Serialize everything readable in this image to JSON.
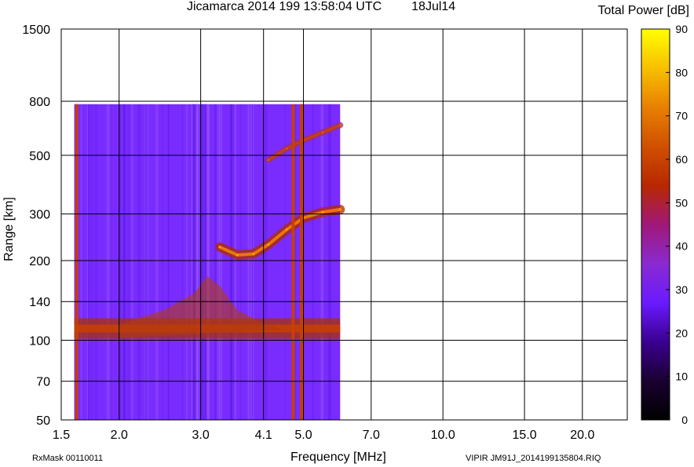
{
  "title": "Jicamarca 2014 199 13:58:04 UTC",
  "date": "18Jul14",
  "colorbar_title": "Total Power [dB]",
  "footer_left": "RxMask 00110011",
  "footer_right": "VIPIR  JM91J_2014199135804.RIQ",
  "colors": {
    "background": "#ffffff",
    "grid": "#000000",
    "background_noise": "#7a2cff",
    "trace": "#c84000",
    "trace_strong": "#e87800"
  },
  "chart_data": {
    "type": "heatmap",
    "title": "Jicamarca 2014 199 13:58:04 UTC",
    "xlabel": "Frequency [MHz]",
    "ylabel": "Range [km]",
    "x_scale": "log",
    "y_scale": "log",
    "xlim": [
      1.5,
      25.0
    ],
    "ylim": [
      50,
      1500
    ],
    "x_ticks": [
      1.5,
      2.0,
      3.0,
      4.1,
      5.0,
      7.0,
      10.0,
      15.0,
      20.0
    ],
    "x_tick_labels": [
      "1.5",
      "2.0",
      "3.0",
      "4.1",
      "5.0",
      "7.0",
      "10.0",
      "15.0",
      "20.0"
    ],
    "y_ticks": [
      50,
      70,
      100,
      140,
      200,
      300,
      500,
      800,
      1500
    ],
    "y_tick_labels": [
      "50",
      "70",
      "100",
      "140",
      "200",
      "300",
      "500",
      "800",
      "1500"
    ],
    "grid": true,
    "data_extent": {
      "freq_mhz": [
        1.6,
        6.0
      ],
      "range_km": [
        50,
        780
      ]
    },
    "colorbar": {
      "label": "Total Power [dB]",
      "min": 0,
      "max": 90,
      "ticks": [
        0,
        10,
        20,
        30,
        40,
        50,
        60,
        70,
        80,
        90
      ],
      "stops": [
        "#000000",
        "#1a0030",
        "#3a0090",
        "#6a1aff",
        "#8a2ad0",
        "#a01878",
        "#b82800",
        "#d05000",
        "#e88000",
        "#f8c000",
        "#ffff00"
      ]
    },
    "background_level_db": 22,
    "features": [
      {
        "name": "E-layer echo",
        "range_km": 110,
        "freq_mhz": [
          1.6,
          6.0
        ],
        "power_db": 50
      },
      {
        "name": "F-layer O-trace",
        "points": [
          [
            3.3,
            225
          ],
          [
            3.6,
            210
          ],
          [
            3.9,
            212
          ],
          [
            4.2,
            230
          ],
          [
            4.6,
            262
          ],
          [
            5.0,
            290
          ],
          [
            5.5,
            305
          ],
          [
            6.0,
            312
          ]
        ],
        "power_db": 55
      },
      {
        "name": "F-layer second hop",
        "points": [
          [
            4.2,
            480
          ],
          [
            4.6,
            530
          ],
          [
            5.0,
            570
          ],
          [
            5.5,
            610
          ],
          [
            6.0,
            650
          ]
        ],
        "power_db": 45
      },
      {
        "name": "Interference lines",
        "freq_mhz": [
          1.62,
          4.75,
          4.95
        ],
        "power_db": 50
      }
    ]
  }
}
